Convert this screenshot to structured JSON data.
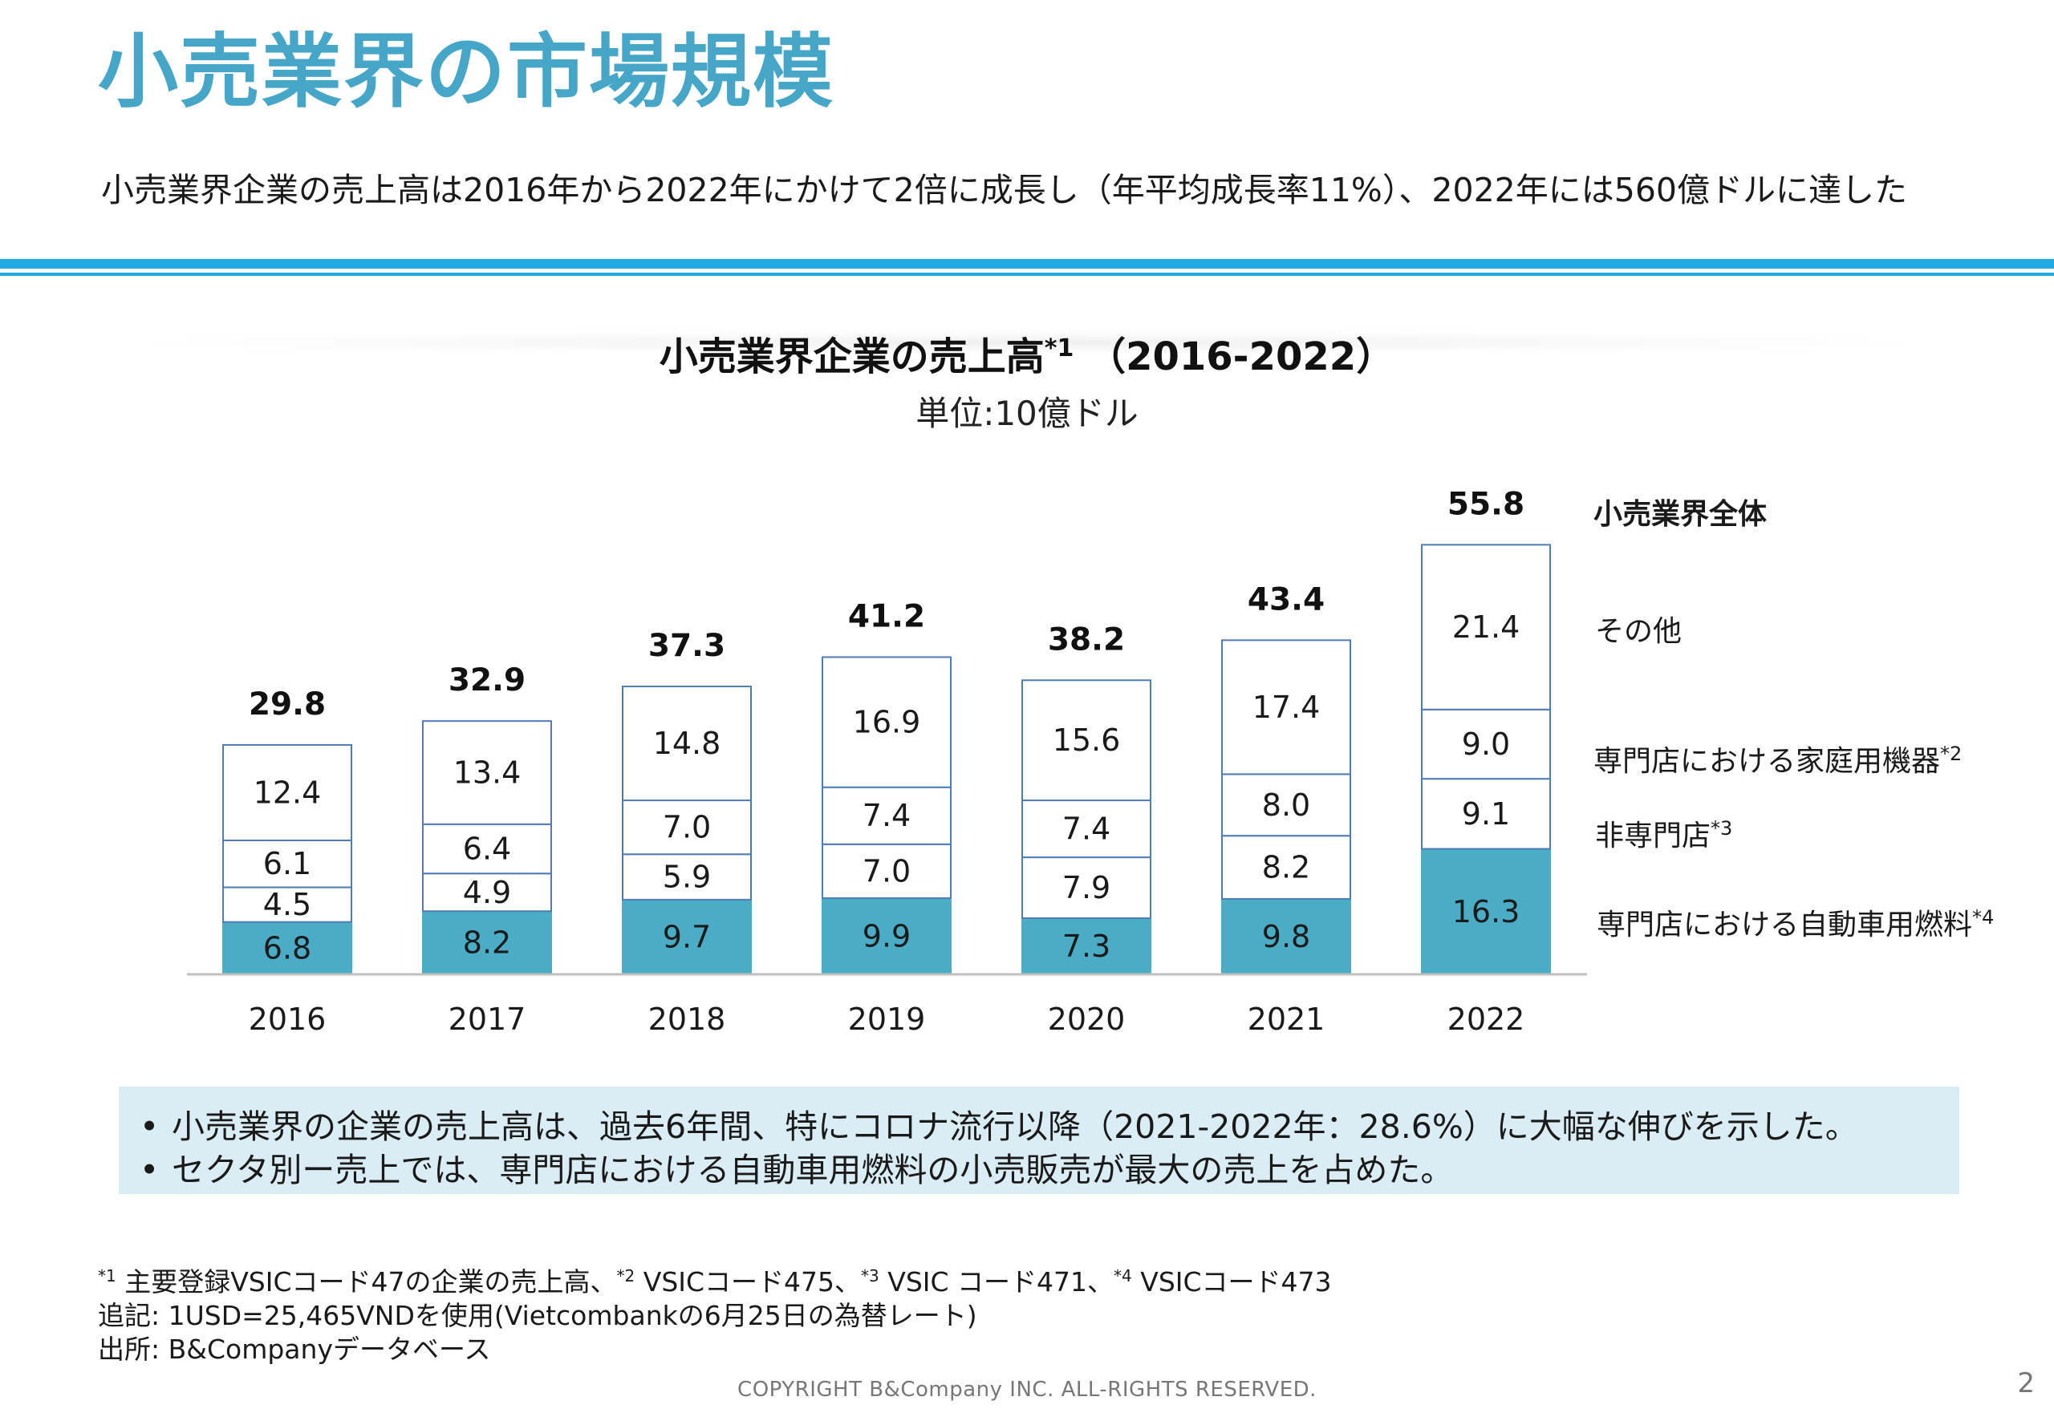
{
  "slide": {
    "title": "小売業界の市場規模",
    "summary": "小売業界企業の売上高は2016年から2022年にかけて2倍に成長し（年平均成長率11%）、2022年には560億ドルに達した",
    "page_number": "2",
    "copyright": "COPYRIGHT B&Company INC. ALL-RIGHTS RESERVED."
  },
  "chart_data": {
    "type": "bar",
    "stacked": true,
    "title": "小売業界企業の売上高",
    "title_mark": "*1",
    "title_period": "（2016-2022）",
    "unit": "単位:10億ドル",
    "categories": [
      "2016",
      "2017",
      "2018",
      "2019",
      "2020",
      "2021",
      "2022"
    ],
    "series": [
      {
        "name": "専門店における自動車用燃料",
        "mark": "*4",
        "color": "#4bacc6",
        "values": [
          6.8,
          8.2,
          9.7,
          9.9,
          7.3,
          9.8,
          16.3
        ]
      },
      {
        "name": "非専門店",
        "mark": "*3",
        "color": "#ffffff",
        "values": [
          4.5,
          4.9,
          5.9,
          7.0,
          7.9,
          8.2,
          9.1
        ]
      },
      {
        "name": "専門店における家庭用機器",
        "mark": "*2",
        "color": "#ffffff",
        "values": [
          6.1,
          6.4,
          7.0,
          7.4,
          7.4,
          8.0,
          9.0
        ]
      },
      {
        "name": "その他",
        "mark": "",
        "color": "#ffffff",
        "values": [
          12.4,
          13.4,
          14.8,
          16.9,
          15.6,
          17.4,
          21.4
        ]
      }
    ],
    "totals_label": "小売業界全体",
    "totals": [
      29.8,
      32.9,
      37.3,
      41.2,
      38.2,
      43.4,
      55.8
    ],
    "bar_outline_color": "#4f7bb8",
    "legend_position": "right",
    "grid": false
  },
  "notes": [
    "小売業界の企業の売上高は、過去6年間、特にコロナ流行以降（2021-2022年：28.6%）に大幅な伸びを示した。",
    "セクタ別ー売上では、専門店における自動車用燃料の小売販売が最大の売上を占めた。"
  ],
  "note_bullet": "•",
  "footnotes": {
    "line1": [
      {
        "mark": "*1",
        "text": " 主要登録VSICコード47の企業の売上高、"
      },
      {
        "mark": "*2",
        "text": "  VSICコード475、"
      },
      {
        "mark": "*3",
        "text": "  VSIC コード471、"
      },
      {
        "mark": "*4",
        "text": "  VSICコード473"
      }
    ],
    "line2": "追記: 1USD=25,465VNDを使用(Vietcombankの6月25日の為替レート)",
    "line3": "出所: B&Companyデータベース"
  }
}
